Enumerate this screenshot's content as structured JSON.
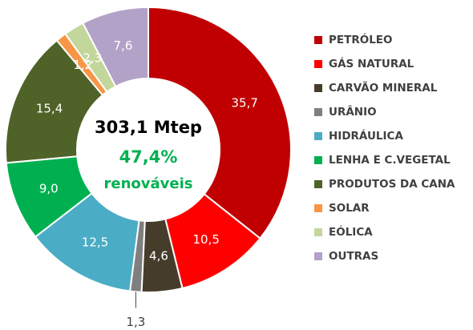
{
  "chart_data": {
    "type": "donut",
    "categories": [
      "PETRÓLEO",
      "GÁS NATURAL",
      "CARVÃO MINERAL",
      "URÂNIO",
      "HIDRÁULICA",
      "LENHA E C.VEGETAL",
      "PRODUTOS DA CANA",
      "SOLAR",
      "EÓLICA",
      "OUTRAS"
    ],
    "values": [
      35.7,
      10.5,
      4.6,
      1.3,
      12.5,
      9.0,
      15.4,
      1.2,
      2.3,
      7.6
    ],
    "value_labels": [
      "35,7",
      "10,5",
      "4,6",
      "1,3",
      "12,5",
      "9,0",
      "15,4",
      "1,2",
      "2,3",
      "7,6"
    ],
    "colors": [
      "#c00000",
      "#ff0000",
      "#463c2a",
      "#7f7f7f",
      "#4bacc6",
      "#00b050",
      "#4f6228",
      "#f79646",
      "#c3d69b",
      "#b3a2c7"
    ],
    "annotations": [
      "303,1 Mtep",
      "47,4%",
      "renováveis"
    ]
  }
}
